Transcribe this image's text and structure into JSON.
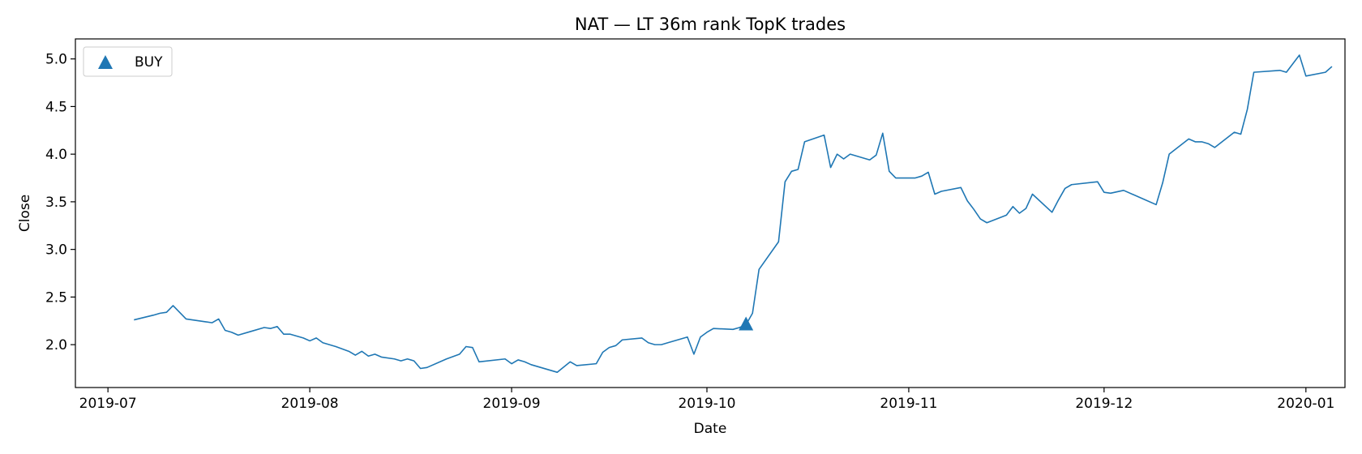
{
  "chart_data": {
    "type": "line",
    "title": "NAT — LT 36m rank TopK trades",
    "xlabel": "Date",
    "ylabel": "Close",
    "x_type": "date",
    "xlim": [
      "2019-06-26",
      "2020-01-07"
    ],
    "ylim": [
      1.55,
      5.21
    ],
    "x_ticks": [
      "2019-07-01",
      "2019-08-01",
      "2019-09-01",
      "2019-10-01",
      "2019-11-01",
      "2019-12-01",
      "2020-01-01"
    ],
    "x_tick_labels": [
      "2019-07",
      "2019-08",
      "2019-09",
      "2019-10",
      "2019-11",
      "2019-12",
      "2020-01"
    ],
    "y_ticks": [
      2.0,
      2.5,
      3.0,
      3.5,
      4.0,
      4.5,
      5.0
    ],
    "y_tick_labels": [
      "2.0",
      "2.5",
      "3.0",
      "3.5",
      "4.0",
      "4.5",
      "5.0"
    ],
    "grid": false,
    "legend": {
      "position": "top-left",
      "entries": [
        {
          "label": "BUY",
          "marker": "triangle-up",
          "color": "#1f77b4"
        }
      ]
    },
    "series": [
      {
        "color": "#1f77b4",
        "points": [
          [
            "2019-07-05",
            2.26
          ],
          [
            "2019-07-08",
            2.31
          ],
          [
            "2019-07-09",
            2.33
          ],
          [
            "2019-07-10",
            2.34
          ],
          [
            "2019-07-11",
            2.41
          ],
          [
            "2019-07-12",
            2.34
          ],
          [
            "2019-07-13",
            2.27
          ],
          [
            "2019-07-16",
            2.24
          ],
          [
            "2019-07-17",
            2.23
          ],
          [
            "2019-07-18",
            2.27
          ],
          [
            "2019-07-19",
            2.15
          ],
          [
            "2019-07-20",
            2.13
          ],
          [
            "2019-07-21",
            2.1
          ],
          [
            "2019-07-23",
            2.14
          ],
          [
            "2019-07-25",
            2.18
          ],
          [
            "2019-07-26",
            2.17
          ],
          [
            "2019-07-27",
            2.19
          ],
          [
            "2019-07-28",
            2.11
          ],
          [
            "2019-07-29",
            2.11
          ],
          [
            "2019-07-31",
            2.07
          ],
          [
            "2019-08-01",
            2.04
          ],
          [
            "2019-08-02",
            2.07
          ],
          [
            "2019-08-03",
            2.02
          ],
          [
            "2019-08-05",
            1.98
          ],
          [
            "2019-08-07",
            1.93
          ],
          [
            "2019-08-08",
            1.89
          ],
          [
            "2019-08-09",
            1.93
          ],
          [
            "2019-08-10",
            1.88
          ],
          [
            "2019-08-11",
            1.9
          ],
          [
            "2019-08-12",
            1.87
          ],
          [
            "2019-08-14",
            1.85
          ],
          [
            "2019-08-15",
            1.83
          ],
          [
            "2019-08-16",
            1.85
          ],
          [
            "2019-08-17",
            1.83
          ],
          [
            "2019-08-18",
            1.75
          ],
          [
            "2019-08-19",
            1.76
          ],
          [
            "2019-08-22",
            1.85
          ],
          [
            "2019-08-24",
            1.9
          ],
          [
            "2019-08-25",
            1.98
          ],
          [
            "2019-08-26",
            1.97
          ],
          [
            "2019-08-27",
            1.82
          ],
          [
            "2019-08-31",
            1.85
          ],
          [
            "2019-09-01",
            1.8
          ],
          [
            "2019-09-02",
            1.84
          ],
          [
            "2019-09-03",
            1.82
          ],
          [
            "2019-09-04",
            1.79
          ],
          [
            "2019-09-08",
            1.71
          ],
          [
            "2019-09-10",
            1.82
          ],
          [
            "2019-09-11",
            1.78
          ],
          [
            "2019-09-14",
            1.8
          ],
          [
            "2019-09-15",
            1.92
          ],
          [
            "2019-09-16",
            1.97
          ],
          [
            "2019-09-17",
            1.99
          ],
          [
            "2019-09-18",
            2.05
          ],
          [
            "2019-09-21",
            2.07
          ],
          [
            "2019-09-22",
            2.02
          ],
          [
            "2019-09-23",
            2.0
          ],
          [
            "2019-09-24",
            2.0
          ],
          [
            "2019-09-25",
            2.02
          ],
          [
            "2019-09-28",
            2.08
          ],
          [
            "2019-09-29",
            1.9
          ],
          [
            "2019-09-30",
            2.08
          ],
          [
            "2019-10-01",
            2.13
          ],
          [
            "2019-10-02",
            2.17
          ],
          [
            "2019-10-05",
            2.16
          ],
          [
            "2019-10-06",
            2.18
          ],
          [
            "2019-10-07",
            2.21
          ],
          [
            "2019-10-08",
            2.33
          ],
          [
            "2019-10-09",
            2.79
          ],
          [
            "2019-10-12",
            3.08
          ],
          [
            "2019-10-13",
            3.71
          ],
          [
            "2019-10-14",
            3.82
          ],
          [
            "2019-10-15",
            3.84
          ],
          [
            "2019-10-16",
            4.13
          ],
          [
            "2019-10-19",
            4.2
          ],
          [
            "2019-10-20",
            3.86
          ],
          [
            "2019-10-21",
            4.0
          ],
          [
            "2019-10-22",
            3.95
          ],
          [
            "2019-10-23",
            4.0
          ],
          [
            "2019-10-26",
            3.94
          ],
          [
            "2019-10-27",
            3.99
          ],
          [
            "2019-10-28",
            4.22
          ],
          [
            "2019-10-29",
            3.82
          ],
          [
            "2019-10-30",
            3.75
          ],
          [
            "2019-11-02",
            3.75
          ],
          [
            "2019-11-03",
            3.77
          ],
          [
            "2019-11-04",
            3.81
          ],
          [
            "2019-11-05",
            3.58
          ],
          [
            "2019-11-06",
            3.61
          ],
          [
            "2019-11-09",
            3.65
          ],
          [
            "2019-11-10",
            3.51
          ],
          [
            "2019-11-11",
            3.42
          ],
          [
            "2019-11-12",
            3.32
          ],
          [
            "2019-11-13",
            3.28
          ],
          [
            "2019-11-16",
            3.36
          ],
          [
            "2019-11-17",
            3.45
          ],
          [
            "2019-11-18",
            3.38
          ],
          [
            "2019-11-19",
            3.43
          ],
          [
            "2019-11-20",
            3.58
          ],
          [
            "2019-11-23",
            3.39
          ],
          [
            "2019-11-24",
            3.52
          ],
          [
            "2019-11-25",
            3.64
          ],
          [
            "2019-11-26",
            3.68
          ],
          [
            "2019-11-30",
            3.71
          ],
          [
            "2019-12-01",
            3.6
          ],
          [
            "2019-12-02",
            3.59
          ],
          [
            "2019-12-04",
            3.62
          ],
          [
            "2019-12-07",
            3.53
          ],
          [
            "2019-12-09",
            3.47
          ],
          [
            "2019-12-10",
            3.7
          ],
          [
            "2019-12-11",
            4.0
          ],
          [
            "2019-12-14",
            4.16
          ],
          [
            "2019-12-15",
            4.13
          ],
          [
            "2019-12-16",
            4.13
          ],
          [
            "2019-12-17",
            4.11
          ],
          [
            "2019-12-18",
            4.07
          ],
          [
            "2019-12-21",
            4.23
          ],
          [
            "2019-12-22",
            4.21
          ],
          [
            "2019-12-23",
            4.47
          ],
          [
            "2019-12-24",
            4.86
          ],
          [
            "2019-12-28",
            4.88
          ],
          [
            "2019-12-29",
            4.86
          ],
          [
            "2019-12-31",
            5.04
          ],
          [
            "2020-01-01",
            4.82
          ],
          [
            "2020-01-04",
            4.86
          ],
          [
            "2020-01-05",
            4.92
          ]
        ]
      }
    ],
    "markers": [
      {
        "label": "BUY",
        "date": "2019-10-07",
        "value": 2.21,
        "shape": "triangle-up",
        "color": "#1f77b4"
      }
    ]
  }
}
